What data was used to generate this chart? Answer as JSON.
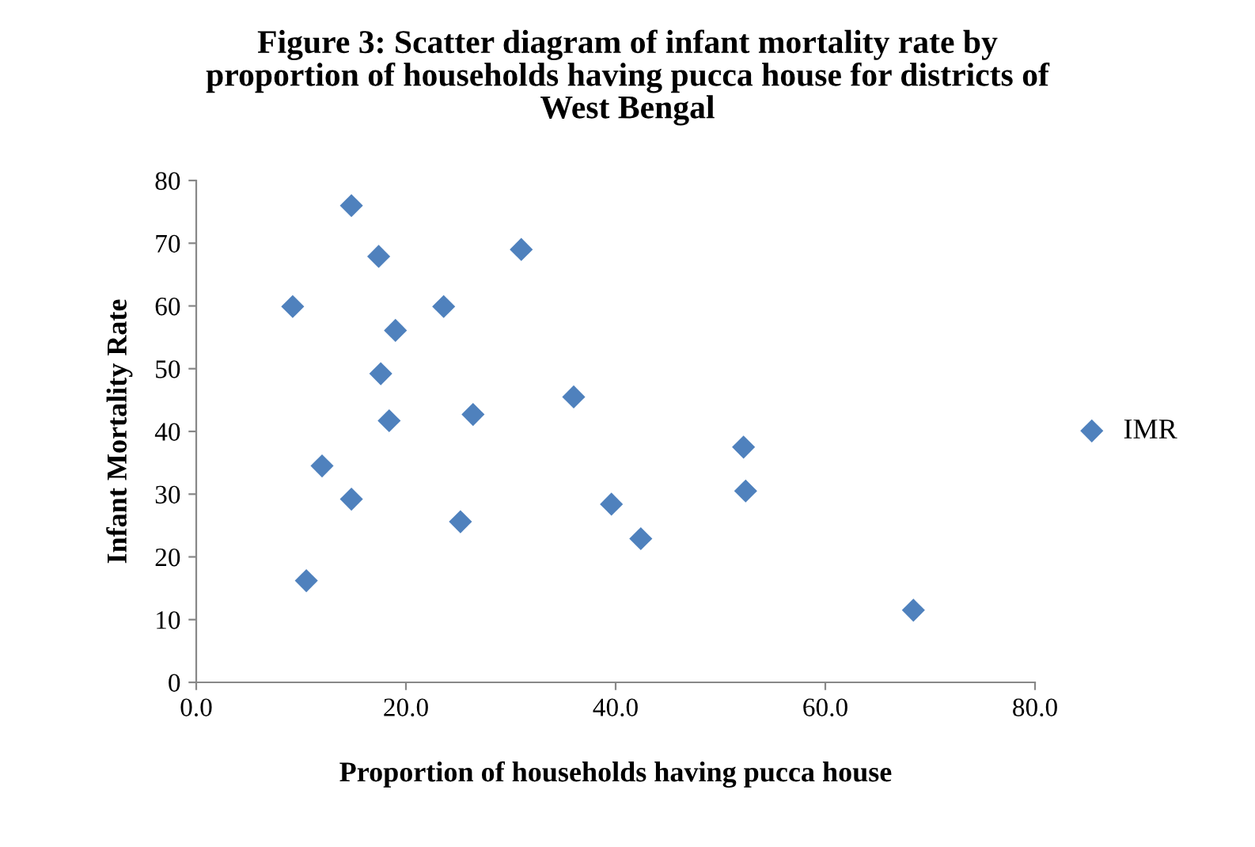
{
  "chart_data": {
    "type": "scatter",
    "title": "Figure 3: Scatter diagram of infant mortality rate by\nproportion of households having pucca house for districts of\nWest Bengal",
    "xlabel": "Proportion of households having pucca house",
    "ylabel": "Infant Mortality Rate",
    "series": [
      {
        "name": "IMR",
        "color": "#4f81bd",
        "x": [
          14.8,
          17.4,
          31.0,
          9.2,
          23.6,
          19.0,
          17.6,
          18.4,
          26.4,
          36.0,
          12.0,
          14.8,
          25.2,
          10.5,
          39.6,
          42.4,
          52.2,
          52.4,
          68.4
        ],
        "values": [
          76.0,
          67.9,
          69.0,
          59.9,
          59.9,
          56.1,
          49.2,
          41.7,
          42.7,
          45.5,
          34.5,
          29.2,
          25.6,
          16.2,
          28.4,
          22.9,
          37.5,
          30.5,
          11.5
        ]
      }
    ],
    "marker": "diamond",
    "xlim": [
      0,
      80
    ],
    "xticks": [
      {
        "value": 0,
        "label": "0.0"
      },
      {
        "value": 20,
        "label": "20.0"
      },
      {
        "value": 40,
        "label": "40.0"
      },
      {
        "value": 60,
        "label": "60.0"
      },
      {
        "value": 80,
        "label": "80.0"
      }
    ],
    "ylim": [
      0,
      80
    ],
    "yticks": [
      0,
      10,
      20,
      30,
      40,
      50,
      60,
      70,
      80
    ],
    "grid": false,
    "legend": "right"
  }
}
